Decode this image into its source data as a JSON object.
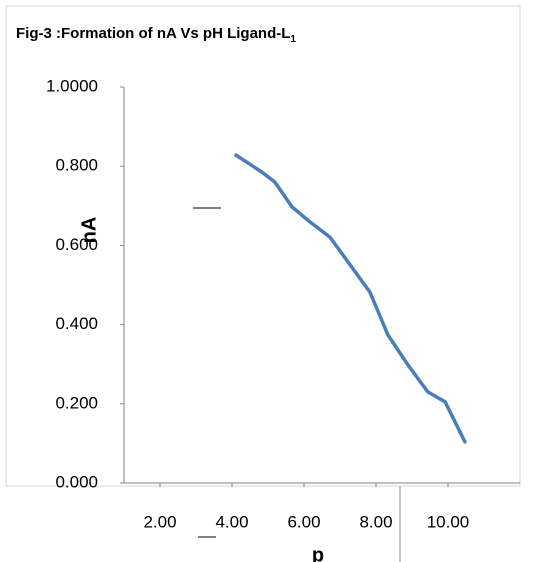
{
  "chart_data": {
    "type": "line",
    "title": "Fig-3 :Formation of nA Vs pH Ligand-L",
    "title_subscript": "1",
    "ylabel": "nA",
    "xlabel": "p",
    "series": [
      {
        "color": "#4a7ebb",
        "x": [
          4.11,
          4.83,
          5.19,
          5.67,
          6.17,
          6.72,
          7.28,
          7.83,
          8.33,
          8.89,
          9.44,
          9.92,
          10.47
        ],
        "values": [
          0.828,
          0.785,
          0.76,
          0.697,
          0.659,
          0.621,
          0.551,
          0.482,
          0.374,
          0.298,
          0.23,
          0.205,
          0.104
        ]
      }
    ],
    "xlim": [
      1,
      12
    ],
    "xticks": [
      {
        "value": 2,
        "label": "2.00"
      },
      {
        "value": 4,
        "label": "4.00"
      },
      {
        "value": 6,
        "label": "6.00"
      },
      {
        "value": 8,
        "label": "8.00"
      },
      {
        "value": 10,
        "label": "10.00"
      }
    ],
    "ylim": [
      0,
      1
    ],
    "yticks": [
      {
        "value": 0,
        "label": "0.000"
      },
      {
        "value": 0.2,
        "label": "0.200"
      },
      {
        "value": 0.4,
        "label": "0.400"
      },
      {
        "value": 0.6,
        "label": "0.600"
      },
      {
        "value": 0.8,
        "label": "0.800"
      },
      {
        "value": 1,
        "label": "1.0000"
      }
    ]
  }
}
